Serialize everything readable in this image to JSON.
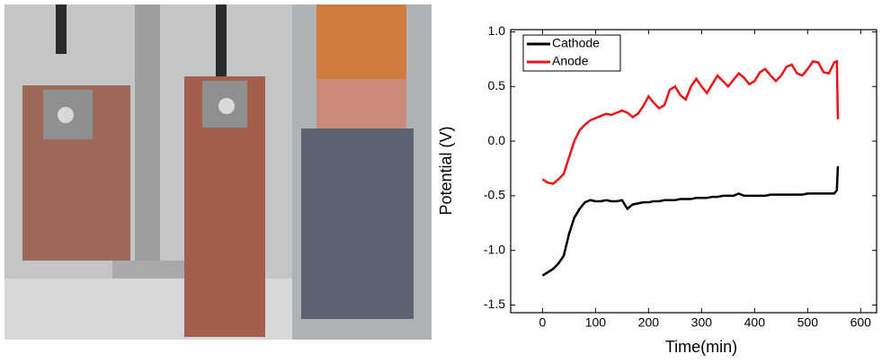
{
  "chart_data": {
    "type": "line",
    "xlabel": "Time(min)",
    "ylabel": "Potential (V)",
    "x": [
      0,
      10,
      20,
      30,
      40,
      50,
      60,
      70,
      80,
      90,
      100,
      110,
      120,
      130,
      140,
      150,
      160,
      170,
      180,
      190,
      200,
      210,
      220,
      230,
      240,
      250,
      260,
      270,
      280,
      290,
      300,
      310,
      320,
      330,
      340,
      350,
      360,
      370,
      380,
      390,
      400,
      410,
      420,
      430,
      440,
      450,
      460,
      470,
      480,
      490,
      500,
      510,
      520,
      530,
      540,
      550,
      555,
      557
    ],
    "series": [
      {
        "name": "Cathode",
        "color": "#000000",
        "values": [
          -1.23,
          -1.2,
          -1.17,
          -1.12,
          -1.05,
          -0.85,
          -0.7,
          -0.62,
          -0.56,
          -0.54,
          -0.55,
          -0.55,
          -0.54,
          -0.55,
          -0.55,
          -0.54,
          -0.62,
          -0.58,
          -0.57,
          -0.56,
          -0.56,
          -0.55,
          -0.55,
          -0.54,
          -0.54,
          -0.54,
          -0.53,
          -0.53,
          -0.53,
          -0.52,
          -0.52,
          -0.52,
          -0.51,
          -0.51,
          -0.5,
          -0.5,
          -0.5,
          -0.48,
          -0.5,
          -0.5,
          -0.5,
          -0.5,
          -0.5,
          -0.49,
          -0.49,
          -0.49,
          -0.49,
          -0.49,
          -0.49,
          -0.49,
          -0.48,
          -0.48,
          -0.48,
          -0.48,
          -0.48,
          -0.48,
          -0.45,
          -0.23
        ]
      },
      {
        "name": "Anode",
        "color": "#e8141a",
        "values": [
          -0.35,
          -0.38,
          -0.39,
          -0.35,
          -0.3,
          -0.15,
          0.0,
          0.1,
          0.15,
          0.19,
          0.21,
          0.23,
          0.25,
          0.24,
          0.26,
          0.28,
          0.26,
          0.22,
          0.25,
          0.32,
          0.41,
          0.35,
          0.3,
          0.33,
          0.47,
          0.5,
          0.42,
          0.38,
          0.5,
          0.57,
          0.5,
          0.44,
          0.52,
          0.6,
          0.55,
          0.5,
          0.56,
          0.62,
          0.58,
          0.52,
          0.55,
          0.63,
          0.66,
          0.6,
          0.55,
          0.6,
          0.68,
          0.7,
          0.62,
          0.6,
          0.66,
          0.73,
          0.72,
          0.63,
          0.62,
          0.72,
          0.73,
          0.2
        ]
      }
    ],
    "xlim": [
      -60,
      630
    ],
    "ylim": [
      -1.57,
      1.02
    ],
    "xticks": [
      0,
      100,
      200,
      300,
      400,
      500,
      600
    ],
    "yticks": [
      {
        "value": 1,
        "label": "1.0"
      },
      0.5,
      {
        "value": 0,
        "label": "0.0"
      },
      -0.5,
      {
        "value": -1,
        "label": "-1.0"
      },
      -1.5
    ],
    "legend": "upper left"
  }
}
